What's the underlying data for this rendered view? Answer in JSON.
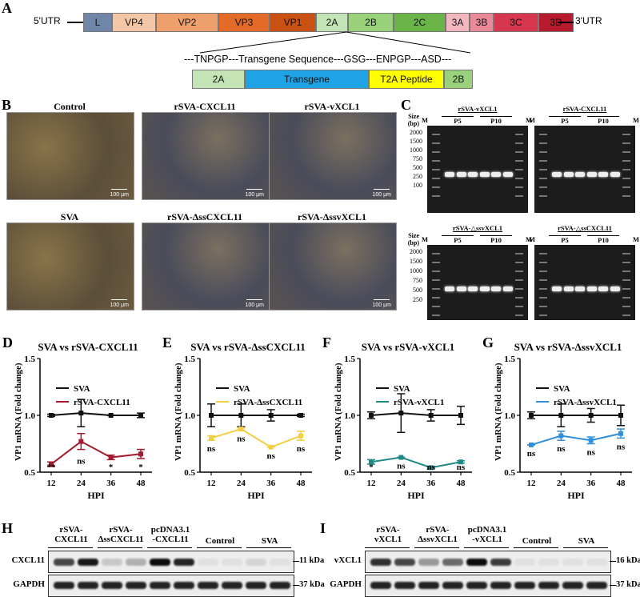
{
  "panel_A": {
    "label": "A",
    "utr5": "5'UTR",
    "utr3": "3'UTR",
    "genes": [
      {
        "name": "L",
        "color": "#6f86a8"
      },
      {
        "name": "VP4",
        "color": "#f3c7a6"
      },
      {
        "name": "VP2",
        "color": "#eda06b"
      },
      {
        "name": "VP3",
        "color": "#e36a27"
      },
      {
        "name": "VP1",
        "color": "#c95112"
      },
      {
        "name": "2A",
        "color": "#c5e4b5"
      },
      {
        "name": "2B",
        "color": "#9ad27c"
      },
      {
        "name": "2C",
        "color": "#6bb548"
      },
      {
        "name": "3A",
        "color": "#f3b7c0"
      },
      {
        "name": "3B",
        "color": "#ea8a98"
      },
      {
        "name": "3C",
        "color": "#d7374d"
      },
      {
        "name": "3D",
        "color": "#b81b2b"
      }
    ],
    "insert_sequence": "---TNPGP---Transgene Sequence---GSG---ENPGP---ASD---",
    "insert_blocks": [
      {
        "name": "2A",
        "color": "#c5e4b5"
      },
      {
        "name": "Transgene",
        "color": "#1ea3e6"
      },
      {
        "name": "T2A Peptide",
        "color": "#ffff00"
      },
      {
        "name": "2B",
        "color": "#9ad27c"
      }
    ]
  },
  "panel_B": {
    "label": "B",
    "scale_bar": "100 μm",
    "images": [
      "Control",
      "rSVA-CXCL11",
      "rSVA-vXCL1",
      "SVA",
      "rSVA-ΔssCXCL11",
      "rSVA-ΔssvXCL1"
    ]
  },
  "panel_C": {
    "label": "C",
    "size_header": "Size\n(bp)",
    "marker": "M",
    "passages": [
      "P5",
      "P10"
    ],
    "sizes": [
      "2000",
      "1500",
      "1000",
      "750",
      "500",
      "250",
      "100"
    ],
    "sizes_bottom": [
      "2000",
      "1500",
      "1000",
      "750",
      "500",
      "250"
    ],
    "gels": [
      "rSVA-vXCL1",
      "rSVA-CXCL11",
      "rSVA-△ssvXCL1",
      "rSVA-△ssCXCL11"
    ]
  },
  "chart_data": [
    {
      "label": "D",
      "type": "line",
      "title": "SVA vs rSVA-CXCL11",
      "xlabel": "HPI",
      "ylabel": "VP1 mRNA (Fold change)",
      "x": [
        12,
        24,
        36,
        48
      ],
      "ylim": [
        0.5,
        1.5
      ],
      "yticks": [
        "0.5",
        "1.0",
        "1.5"
      ],
      "series": [
        {
          "name": "SVA",
          "color": "#111111",
          "values": [
            1.0,
            1.02,
            1.0,
            1.0
          ],
          "errors": [
            0.01,
            0.12,
            0.0,
            0.02
          ]
        },
        {
          "name": "rSVA-CXCL11",
          "color": "#a31a2f",
          "values": [
            0.57,
            0.77,
            0.63,
            0.66
          ],
          "errors": [
            0.02,
            0.07,
            0.02,
            0.04
          ]
        }
      ],
      "annotations": [
        "**",
        "ns",
        "*",
        "*"
      ]
    },
    {
      "label": "E",
      "type": "line",
      "title": "SVA vs rSVA-ΔssCXCL11",
      "xlabel": "HPI",
      "ylabel": "VP1 mRNA (Fold change)",
      "x": [
        12,
        24,
        36,
        48
      ],
      "ylim": [
        0.5,
        1.5
      ],
      "yticks": [
        "0.5",
        "1.0",
        "1.5"
      ],
      "series": [
        {
          "name": "SVA",
          "color": "#111111",
          "values": [
            1.0,
            1.0,
            1.0,
            1.0
          ],
          "errors": [
            0.1,
            0.1,
            0.05,
            0.01
          ]
        },
        {
          "name": "rSVA-ΔssCXCL11",
          "color": "#f2cf42",
          "values": [
            0.8,
            0.88,
            0.72,
            0.82
          ],
          "errors": [
            0.02,
            0.01,
            0.0,
            0.04
          ]
        }
      ],
      "annotations": [
        "ns",
        "ns",
        "ns",
        "ns"
      ]
    },
    {
      "label": "F",
      "type": "line",
      "title": "SVA vs rSVA-vXCL1",
      "xlabel": "HPI",
      "ylabel": "VP1 mRNA (Fold change)",
      "x": [
        12,
        24,
        36,
        48
      ],
      "ylim": [
        0.5,
        1.5
      ],
      "yticks": [
        "0.5",
        "1.0",
        "1.5"
      ],
      "series": [
        {
          "name": "SVA",
          "color": "#111111",
          "values": [
            1.0,
            1.02,
            1.0,
            1.0
          ],
          "errors": [
            0.03,
            0.17,
            0.05,
            0.08
          ]
        },
        {
          "name": "rSVA-vXCL1",
          "color": "#1f8a85",
          "values": [
            0.59,
            0.63,
            0.54,
            0.59
          ],
          "errors": [
            0.02,
            0.0,
            0.01,
            0.01
          ]
        }
      ],
      "annotations": [
        "*",
        "ns",
        "ns",
        "ns"
      ]
    },
    {
      "label": "G",
      "type": "line",
      "title": "SVA vs rSVA-ΔssvXCL1",
      "xlabel": "HPI",
      "ylabel": "VP1 mRNA (Fold change)",
      "x": [
        12,
        24,
        36,
        48
      ],
      "ylim": [
        0.5,
        1.5
      ],
      "yticks": [
        "0.5",
        "1.0",
        "1.5"
      ],
      "series": [
        {
          "name": "SVA",
          "color": "#111111",
          "values": [
            1.0,
            1.0,
            1.0,
            1.0
          ],
          "errors": [
            0.03,
            0.1,
            0.06,
            0.09
          ]
        },
        {
          "name": "rSVA-ΔssvXCL1",
          "color": "#2f8fd8",
          "values": [
            0.74,
            0.82,
            0.78,
            0.84
          ],
          "errors": [
            0.0,
            0.04,
            0.03,
            0.04
          ]
        }
      ],
      "annotations": [
        "ns",
        "ns",
        "ns",
        "ns"
      ]
    }
  ],
  "panel_H": {
    "label": "H",
    "lanes": [
      "rSVA-\nCXCL11",
      "rSVA-\nΔssCXCL11",
      "pcDNA3.1\n-CXCL11",
      "Control",
      "SVA"
    ],
    "rows": [
      "CXCL11",
      "GAPDH"
    ],
    "kda": [
      "11 kDa",
      "37 kDa"
    ]
  },
  "panel_I": {
    "label": "I",
    "lanes": [
      "rSVA-\nvXCL1",
      "rSVA-\nΔssvXCL1",
      "pcDNA3.1\n-vXCL1",
      "Control",
      "SVA"
    ],
    "rows": [
      "vXCL1",
      "GAPDH"
    ],
    "kda": [
      "16 kDa",
      "37 kDa"
    ]
  }
}
